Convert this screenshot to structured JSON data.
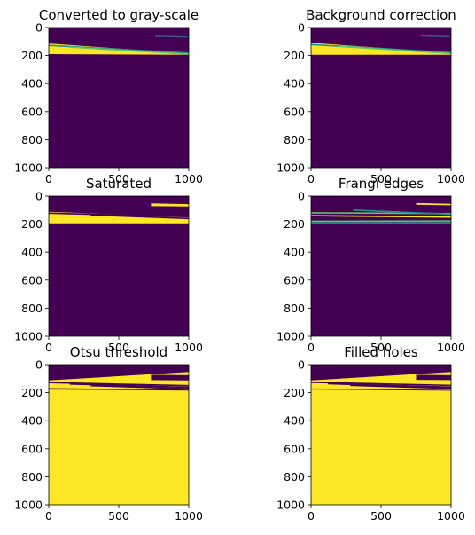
{
  "colors": {
    "background": "#440154",
    "mid_low": "#3b528b",
    "mid": "#21918c",
    "mid_high": "#5ec962",
    "foreground": "#fde725"
  },
  "chart_data": [
    {
      "type": "heatmap",
      "title": "Converted to gray-scale",
      "xlim": [
        0,
        1000
      ],
      "ylim": [
        1000,
        0
      ],
      "xticks": [
        "0",
        "500",
        "1000"
      ],
      "yticks": [
        "0",
        "200",
        "400",
        "600",
        "800",
        "1000"
      ],
      "colormap": "viridis",
      "fill": "background",
      "regions": [
        {
          "shape": "band",
          "x0": 0,
          "x1": 1000,
          "top_start": 115,
          "top_end": 185,
          "bottom_start": 190,
          "bottom_end": 195,
          "color": "foreground"
        },
        {
          "shape": "line",
          "x0": 0,
          "y0": 128,
          "x1": 1000,
          "y1": 182,
          "color": "mid"
        },
        {
          "shape": "line",
          "x0": 150,
          "y0": 140,
          "x1": 1000,
          "y1": 190,
          "color": "mid_high"
        },
        {
          "shape": "line",
          "x0": 760,
          "y0": 62,
          "x1": 990,
          "y1": 68,
          "color": "mid_low"
        }
      ]
    },
    {
      "type": "heatmap",
      "title": "Background correction",
      "xlim": [
        0,
        1000
      ],
      "ylim": [
        1000,
        0
      ],
      "xticks": [
        "0",
        "500",
        "1000"
      ],
      "yticks": [
        "0",
        "200",
        "400",
        "600",
        "800",
        "1000"
      ],
      "colormap": "viridis",
      "fill": "background",
      "regions": [
        {
          "shape": "band",
          "x0": 0,
          "x1": 1000,
          "top_start": 110,
          "top_end": 180,
          "bottom_start": 195,
          "bottom_end": 195,
          "color": "foreground"
        },
        {
          "shape": "line",
          "x0": 0,
          "y0": 122,
          "x1": 1000,
          "y1": 178,
          "color": "mid"
        },
        {
          "shape": "line",
          "x0": 200,
          "y0": 135,
          "x1": 1000,
          "y1": 186,
          "color": "mid_high"
        },
        {
          "shape": "line",
          "x0": 780,
          "y0": 60,
          "x1": 990,
          "y1": 66,
          "color": "mid_low"
        }
      ]
    },
    {
      "type": "heatmap",
      "title": "Saturated",
      "xlim": [
        0,
        1000
      ],
      "ylim": [
        1000,
        0
      ],
      "xticks": [
        "0",
        "500",
        "1000"
      ],
      "yticks": [
        "0",
        "200",
        "400",
        "600",
        "800",
        "1000"
      ],
      "colormap": "viridis",
      "fill": "background",
      "regions": [
        {
          "shape": "band",
          "x0": 0,
          "x1": 1000,
          "top_start": 112,
          "top_end": 150,
          "bottom_start": 195,
          "bottom_end": 195,
          "color": "foreground"
        },
        {
          "shape": "band",
          "x0": 730,
          "x1": 1000,
          "top_start": 52,
          "top_end": 58,
          "bottom_start": 72,
          "bottom_end": 74,
          "color": "foreground"
        },
        {
          "shape": "line",
          "x0": 0,
          "y0": 122,
          "x1": 1000,
          "y1": 148,
          "color": "background"
        },
        {
          "shape": "line",
          "x0": 300,
          "y0": 135,
          "x1": 1000,
          "y1": 160,
          "color": "background"
        }
      ]
    },
    {
      "type": "heatmap",
      "title": "Frangi edges",
      "xlim": [
        0,
        1000
      ],
      "ylim": [
        1000,
        0
      ],
      "xticks": [
        "0",
        "500",
        "1000"
      ],
      "yticks": [
        "0",
        "200",
        "400",
        "600",
        "800",
        "1000"
      ],
      "colormap": "viridis",
      "fill": "background",
      "regions": [
        {
          "shape": "line",
          "x0": 0,
          "y0": 120,
          "x1": 1000,
          "y1": 125,
          "color": "mid_high"
        },
        {
          "shape": "line",
          "x0": 0,
          "y0": 140,
          "x1": 1000,
          "y1": 150,
          "color": "foreground"
        },
        {
          "shape": "line",
          "x0": 0,
          "y0": 180,
          "x1": 1000,
          "y1": 178,
          "color": "mid_high"
        },
        {
          "shape": "line",
          "x0": 0,
          "y0": 190,
          "x1": 1000,
          "y1": 190,
          "color": "mid"
        },
        {
          "shape": "line",
          "x0": 300,
          "y0": 100,
          "x1": 1000,
          "y1": 130,
          "color": "mid"
        },
        {
          "shape": "band",
          "x0": 750,
          "x1": 1000,
          "top_start": 50,
          "top_end": 55,
          "bottom_start": 62,
          "bottom_end": 66,
          "color": "foreground"
        }
      ]
    },
    {
      "type": "heatmap",
      "title": "Otsu threshold",
      "xlim": [
        0,
        1000
      ],
      "ylim": [
        1000,
        0
      ],
      "xticks": [
        "0",
        "500",
        "1000"
      ],
      "yticks": [
        "0",
        "200",
        "400",
        "600",
        "800",
        "1000"
      ],
      "colormap": "viridis",
      "fill": "foreground",
      "regions": [
        {
          "shape": "band",
          "x0": 0,
          "x1": 1000,
          "top_start": 0,
          "top_end": 0,
          "bottom_start": 112,
          "bottom_end": 52,
          "color": "background"
        },
        {
          "shape": "band",
          "x0": 730,
          "x1": 1000,
          "top_start": 72,
          "top_end": 75,
          "bottom_start": 110,
          "bottom_end": 112,
          "color": "background"
        },
        {
          "shape": "line",
          "x0": 0,
          "y0": 128,
          "x1": 1000,
          "y1": 150,
          "color": "background"
        },
        {
          "shape": "line",
          "x0": 150,
          "y0": 138,
          "x1": 1000,
          "y1": 162,
          "color": "background"
        },
        {
          "shape": "line",
          "x0": 300,
          "y0": 150,
          "x1": 1000,
          "y1": 172,
          "color": "background"
        },
        {
          "shape": "band",
          "x0": 0,
          "x1": 1000,
          "top_start": 168,
          "top_end": 178,
          "bottom_start": 178,
          "bottom_end": 185,
          "color": "background"
        }
      ]
    },
    {
      "type": "heatmap",
      "title": "Filled holes",
      "xlim": [
        0,
        1000
      ],
      "ylim": [
        1000,
        0
      ],
      "xticks": [
        "0",
        "500",
        "1000"
      ],
      "yticks": [
        "0",
        "200",
        "400",
        "600",
        "800",
        "1000"
      ],
      "colormap": "viridis",
      "fill": "foreground",
      "regions": [
        {
          "shape": "band",
          "x0": 0,
          "x1": 1000,
          "top_start": 0,
          "top_end": 0,
          "bottom_start": 112,
          "bottom_end": 52,
          "color": "background"
        },
        {
          "shape": "band",
          "x0": 750,
          "x1": 1000,
          "top_start": 72,
          "top_end": 75,
          "bottom_start": 108,
          "bottom_end": 110,
          "color": "background"
        },
        {
          "shape": "line",
          "x0": 0,
          "y0": 126,
          "x1": 1000,
          "y1": 148,
          "color": "background"
        },
        {
          "shape": "line",
          "x0": 120,
          "y0": 136,
          "x1": 1000,
          "y1": 160,
          "color": "background"
        },
        {
          "shape": "line",
          "x0": 280,
          "y0": 148,
          "x1": 1000,
          "y1": 170,
          "color": "background"
        },
        {
          "shape": "band",
          "x0": 0,
          "x1": 1000,
          "top_start": 170,
          "top_end": 180,
          "bottom_start": 178,
          "bottom_end": 186,
          "color": "background"
        }
      ]
    }
  ]
}
